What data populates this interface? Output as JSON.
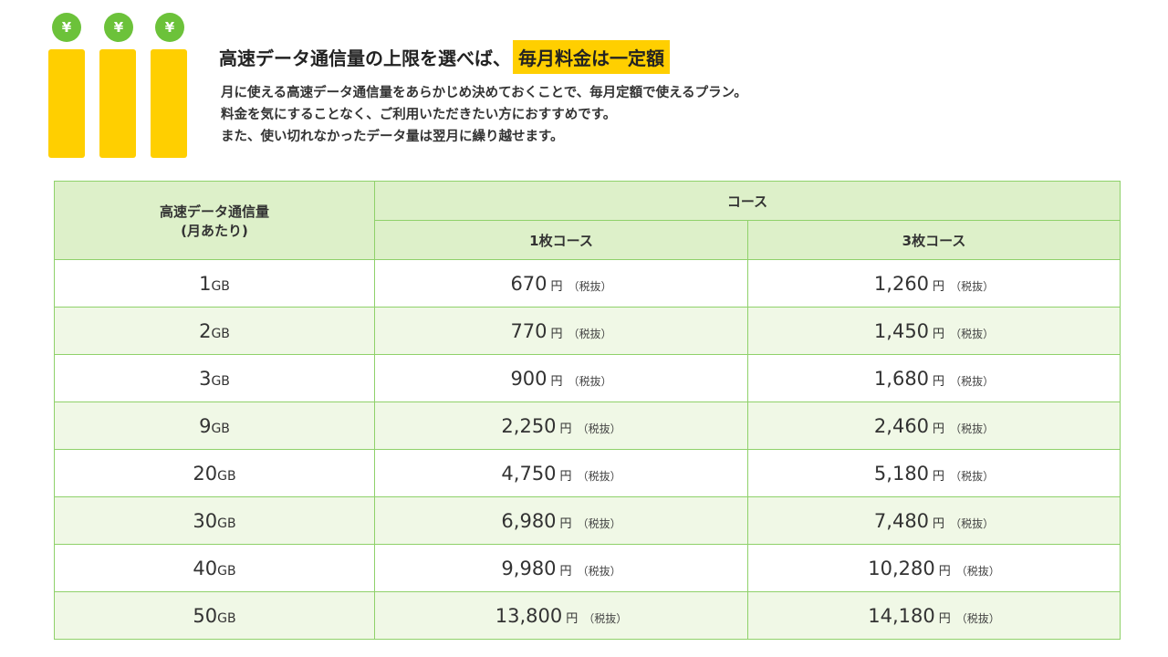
{
  "icon": {
    "coin_symbol": "¥"
  },
  "headline": {
    "text": "高速データ通信量の上限を選べば、",
    "highlight": "毎月料金は一定額"
  },
  "description": [
    "月に使える高速データ通信量をあらかじめ決めておくことで、毎月定額で使えるプラン。",
    "料金を気にすることなく、ご利用いただきたい方におすすめです。",
    "また、使い切れなかったデータ量は翌月に繰り越せます。"
  ],
  "table": {
    "col1_header_line1": "高速データ通信量",
    "col1_header_line2": "(月あたり)",
    "course_header": "コース",
    "course_1": "1枚コース",
    "course_3": "3枚コース",
    "gb_unit": "GB",
    "yen_unit": "円",
    "tax_note": "（税抜）",
    "rows": [
      {
        "gb": "1",
        "price_1": "670",
        "price_3": "1,260"
      },
      {
        "gb": "2",
        "price_1": "770",
        "price_3": "1,450"
      },
      {
        "gb": "3",
        "price_1": "900",
        "price_3": "1,680"
      },
      {
        "gb": "9",
        "price_1": "2,250",
        "price_3": "2,460"
      },
      {
        "gb": "20",
        "price_1": "4,750",
        "price_3": "5,180"
      },
      {
        "gb": "30",
        "price_1": "6,980",
        "price_3": "7,480"
      },
      {
        "gb": "40",
        "price_1": "9,980",
        "price_3": "10,280"
      },
      {
        "gb": "50",
        "price_1": "13,800",
        "price_3": "14,180"
      }
    ]
  },
  "colors": {
    "accent_yellow": "#ffcf00",
    "coin_green": "#6cc23a",
    "table_border": "#8fd16a",
    "header_bg": "#ddf0c9",
    "alt_row_bg": "#f0f8e6"
  }
}
